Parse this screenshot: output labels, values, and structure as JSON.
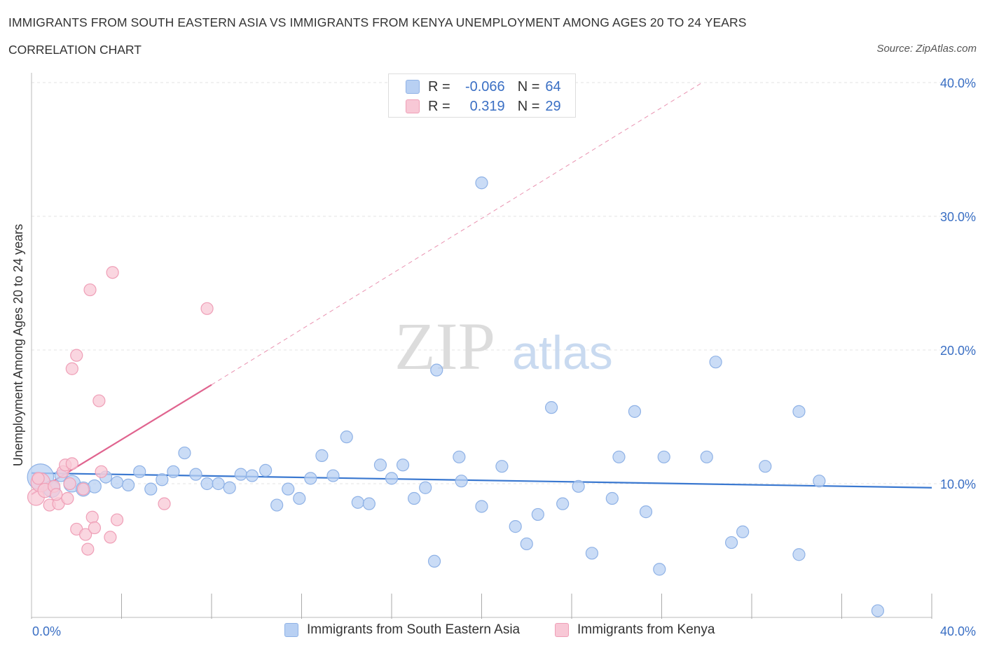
{
  "header": {
    "title": "IMMIGRANTS FROM SOUTH EASTERN ASIA VS IMMIGRANTS FROM KENYA UNEMPLOYMENT AMONG AGES 20 TO 24 YEARS",
    "subtitle": "CORRELATION CHART",
    "source": "Source: ZipAtlas.com"
  },
  "watermark": {
    "zip": "ZIP",
    "atlas": "atlas"
  },
  "legend": {
    "r_label": "R =",
    "n_label": "N =",
    "series_a": {
      "r": "-0.066",
      "n": "64"
    },
    "series_b": {
      "r": "0.319",
      "n": "29"
    }
  },
  "colors": {
    "blue_fill": "#b8d0f3",
    "blue_stroke": "#8fb2e6",
    "blue_line": "#3a78d0",
    "pink_fill": "#f8c8d6",
    "pink_stroke": "#ef9fb7",
    "pink_line": "#e0648f",
    "axis_text": "#3a6fc4",
    "grid": "#e3e3e3"
  },
  "chart_data": {
    "type": "scatter",
    "title": "IMMIGRANTS FROM SOUTH EASTERN ASIA VS IMMIGRANTS FROM KENYA UNEMPLOYMENT AMONG AGES 20 TO 24 YEARS",
    "xlabel": "",
    "ylabel": "Unemployment Among Ages 20 to 24 years",
    "xlim": [
      0,
      40
    ],
    "ylim": [
      0,
      40
    ],
    "x_tick_labels": [
      "0.0%",
      "40.0%"
    ],
    "y_ticks": [
      {
        "value": 10,
        "label": "10.0%"
      },
      {
        "value": 20,
        "label": "20.0%"
      },
      {
        "value": 30,
        "label": "30.0%"
      },
      {
        "value": 40,
        "label": "40.0%"
      }
    ],
    "series": [
      {
        "name": "Immigrants from South Eastern Asia",
        "color": "blue",
        "trend": {
          "x0": 0,
          "y0": 10.8,
          "x1": 40,
          "y1": 9.7
        },
        "points": [
          [
            0.4,
            10.5,
            2.2
          ],
          [
            0.9,
            9.6,
            1.4
          ],
          [
            1.3,
            10.6,
            1
          ],
          [
            1.8,
            10.0,
            1.4
          ],
          [
            2.3,
            9.6,
            1.2
          ],
          [
            2.8,
            9.8,
            1.1
          ],
          [
            3.3,
            10.5,
            1
          ],
          [
            3.8,
            10.1,
            1
          ],
          [
            4.3,
            9.9,
            1
          ],
          [
            4.8,
            10.9,
            1
          ],
          [
            5.3,
            9.6,
            1
          ],
          [
            5.8,
            10.3,
            1
          ],
          [
            6.3,
            10.9,
            1
          ],
          [
            6.8,
            12.3,
            1
          ],
          [
            7.3,
            10.7,
            1
          ],
          [
            7.8,
            10.0,
            1
          ],
          [
            8.3,
            10.0,
            1
          ],
          [
            8.8,
            9.7,
            1
          ],
          [
            9.3,
            10.7,
            1
          ],
          [
            9.8,
            10.6,
            1
          ],
          [
            10.4,
            11.0,
            1
          ],
          [
            10.9,
            8.4,
            1
          ],
          [
            11.4,
            9.6,
            1
          ],
          [
            11.9,
            8.9,
            1
          ],
          [
            12.4,
            10.4,
            1
          ],
          [
            12.9,
            12.1,
            1
          ],
          [
            13.4,
            10.6,
            1
          ],
          [
            14.0,
            13.5,
            1
          ],
          [
            14.5,
            8.6,
            1
          ],
          [
            15.0,
            8.5,
            1
          ],
          [
            15.5,
            11.4,
            1
          ],
          [
            16.0,
            10.4,
            1
          ],
          [
            16.5,
            11.4,
            1
          ],
          [
            17.0,
            8.9,
            1
          ],
          [
            17.5,
            9.7,
            1
          ],
          [
            17.9,
            4.2,
            1
          ],
          [
            18.0,
            18.5,
            1
          ],
          [
            19.0,
            12.0,
            1
          ],
          [
            19.1,
            10.2,
            1
          ],
          [
            20.0,
            32.5,
            1
          ],
          [
            20.0,
            8.3,
            1
          ],
          [
            20.9,
            11.3,
            1
          ],
          [
            21.5,
            6.8,
            1
          ],
          [
            22.0,
            5.5,
            1
          ],
          [
            22.5,
            7.7,
            1
          ],
          [
            23.1,
            15.7,
            1
          ],
          [
            23.6,
            8.5,
            1
          ],
          [
            24.3,
            9.8,
            1
          ],
          [
            24.9,
            4.8,
            1
          ],
          [
            25.8,
            8.9,
            1
          ],
          [
            26.1,
            12.0,
            1
          ],
          [
            26.8,
            15.4,
            1
          ],
          [
            27.3,
            7.9,
            1
          ],
          [
            27.9,
            3.6,
            1
          ],
          [
            28.1,
            12.0,
            1
          ],
          [
            30.0,
            12.0,
            1
          ],
          [
            30.4,
            19.1,
            1
          ],
          [
            31.1,
            5.6,
            1
          ],
          [
            31.6,
            6.4,
            1
          ],
          [
            32.6,
            11.3,
            1
          ],
          [
            34.1,
            4.7,
            1
          ],
          [
            34.1,
            15.4,
            1
          ],
          [
            35.0,
            10.2,
            1
          ],
          [
            37.6,
            0.5,
            1
          ]
        ]
      },
      {
        "name": "Immigrants from Kenya",
        "color": "pink",
        "trend": {
          "x0": 0,
          "y0": 9.2,
          "x1": 8.0,
          "y1": 17.4
        },
        "trend_extension": {
          "x0": 8.0,
          "y0": 17.4,
          "x1": 29.8,
          "y1": 40.0
        },
        "points": [
          [
            0.2,
            9.0,
            1.4
          ],
          [
            0.4,
            10.1,
            1.6
          ],
          [
            0.6,
            9.5,
            1.2
          ],
          [
            0.8,
            8.4,
            1
          ],
          [
            1.0,
            9.8,
            1
          ],
          [
            1.2,
            8.5,
            1
          ],
          [
            1.4,
            10.9,
            1
          ],
          [
            1.5,
            11.4,
            1
          ],
          [
            1.6,
            8.9,
            1
          ],
          [
            1.7,
            10.0,
            1
          ],
          [
            1.8,
            11.5,
            1
          ],
          [
            1.8,
            18.6,
            1
          ],
          [
            2.0,
            6.6,
            1
          ],
          [
            2.0,
            19.6,
            1
          ],
          [
            2.3,
            9.6,
            1
          ],
          [
            2.4,
            6.2,
            1
          ],
          [
            2.5,
            5.1,
            1
          ],
          [
            2.6,
            24.5,
            1
          ],
          [
            2.7,
            7.5,
            1
          ],
          [
            2.8,
            6.7,
            1
          ],
          [
            3.0,
            16.2,
            1
          ],
          [
            3.1,
            10.9,
            1
          ],
          [
            3.5,
            6.0,
            1
          ],
          [
            3.6,
            25.8,
            1
          ],
          [
            3.8,
            7.3,
            1
          ],
          [
            5.9,
            8.5,
            1
          ],
          [
            7.8,
            23.1,
            1
          ],
          [
            0.3,
            10.4,
            1
          ],
          [
            1.1,
            9.2,
            1
          ]
        ]
      }
    ]
  },
  "bottom_legend": {
    "series_a": "Immigrants from South Eastern Asia",
    "series_b": "Immigrants from Kenya"
  }
}
